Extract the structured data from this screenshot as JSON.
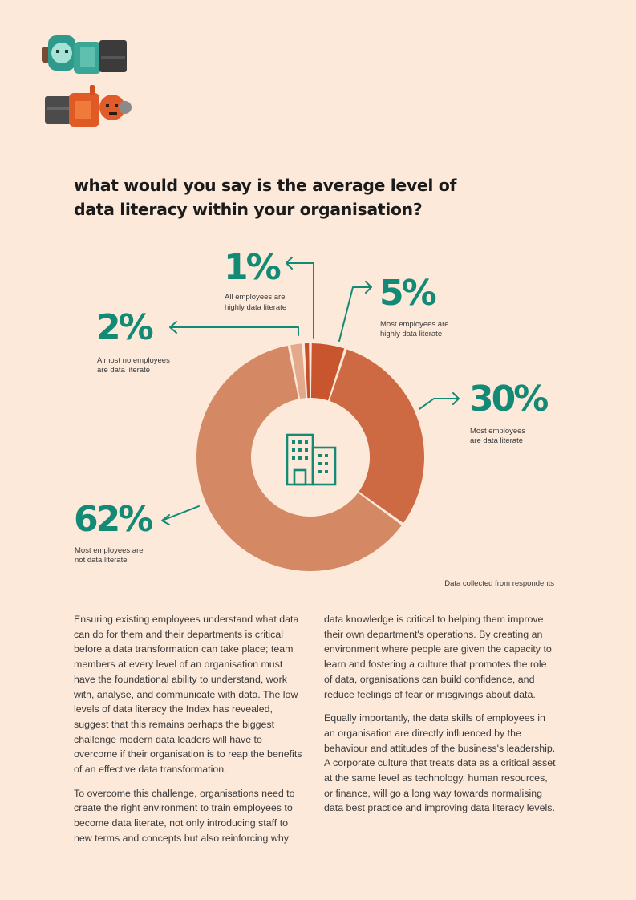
{
  "colors": {
    "background": "#fce9da",
    "accent": "#138a75",
    "segments": [
      "#e3a98a",
      "#c4502b",
      "#c9552f",
      "#cd6a44",
      "#d48964"
    ]
  },
  "question": {
    "line1": "what would you say is the average level of",
    "line2": "data literacy within your organisation?"
  },
  "chart_data": {
    "type": "pie",
    "variant": "donut",
    "center_icon": "office-buildings-icon",
    "categories": [
      "Almost no employees are data literate",
      "All employees are highly data literate",
      "Most employees are highly data literate",
      "Most employees are data literate",
      "Most employees are not data literate"
    ],
    "values": [
      2,
      1,
      5,
      30,
      62
    ],
    "labels": [
      {
        "pct": "2%",
        "line1": "Almost no employees",
        "line2": "are data literate"
      },
      {
        "pct": "1%",
        "line1": "All employees are",
        "line2": "highly data literate"
      },
      {
        "pct": "5%",
        "line1": "Most employees are",
        "line2": "highly data literate"
      },
      {
        "pct": "30%",
        "line1": "Most employees",
        "line2": "are data literate"
      },
      {
        "pct": "62%",
        "line1": "Most employees are",
        "line2": "not data literate"
      }
    ],
    "source": "Data collected from respondents"
  },
  "body": {
    "left": [
      "Ensuring existing employees understand what data can do for them and their departments is critical before a data transformation can take place; team members at every level of an organisation must have the foundational ability to understand, work with, analyse, and communicate with data. The low levels of data literacy the Index has revealed, suggest that this remains perhaps the biggest challenge modern data leaders will have to overcome if their organisation is to reap the benefits of an effective data transformation.",
      "To overcome this challenge, organisations need to create the right environment to train employees to become data literate, not only introducing staff to new terms and concepts but also reinforcing why"
    ],
    "right": [
      "data knowledge is critical to helping them improve their own department's operations. By creating an environment where people are given the capacity to learn and fostering a culture that promotes the role of data, organisations can build confidence, and reduce feelings of fear or misgivings about data.",
      "Equally importantly, the data skills of employees in an organisation are directly influenced by the behaviour and attitudes of the business's leadership. A corporate culture that treats data as a critical asset at the same level as technology, human resources, or finance, will go a long way towards normalising data best practice and improving data literacy levels."
    ]
  }
}
